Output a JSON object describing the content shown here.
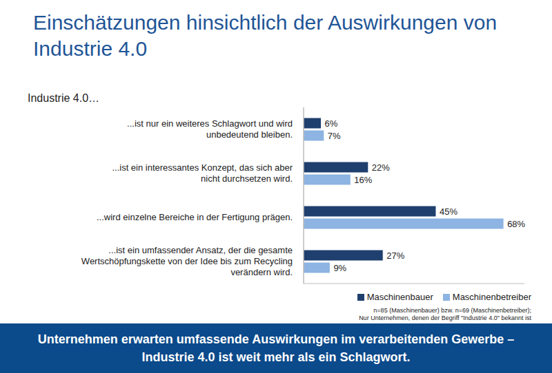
{
  "chart_data": {
    "type": "bar",
    "orientation": "horizontal",
    "title": "Einschätzungen hinsichtlich der Auswirkungen von Industrie 4.0",
    "subtitle": "Industrie 4.0…",
    "categories": [
      "...ist nur ein weiteres Schlagwort und wird unbedeutend bleiben.",
      "...ist ein interessantes Konzept, das sich aber nicht durchsetzen wird.",
      "...wird einzelne Bereiche in der Fertigung prägen.",
      "...ist ein umfassender Ansatz, der die gesamte Wertschöpfungskette von der Idee bis zum Recycling verändern wird."
    ],
    "series": [
      {
        "name": "Maschinenbauer",
        "color": "#1f3f6e",
        "values": [
          6,
          22,
          45,
          27
        ],
        "value_labels": [
          "6%",
          "22%",
          "45%",
          "27%"
        ]
      },
      {
        "name": "Maschinenbetreiber",
        "color": "#8db4e2",
        "values": [
          7,
          16,
          68,
          9
        ],
        "value_labels": [
          "7%",
          "16%",
          "68%",
          "9%"
        ]
      }
    ],
    "xlim": [
      0,
      75
    ],
    "tick_labels": false,
    "grid": false,
    "data_labels": true,
    "legend": "lower right",
    "annotations": [
      "n=85 (Maschinenbauer) bzw. n=69 (Maschinenbetreiber);",
      "Nur Unternehmen, denen der Begriff \"Industrie 4.0\" bekannt ist",
      "Unternehmen erwarten umfassende Auswirkungen im verarbeitenden Gewerbe – Industrie 4.0 ist weit mehr als ein Schlagwort."
    ]
  }
}
